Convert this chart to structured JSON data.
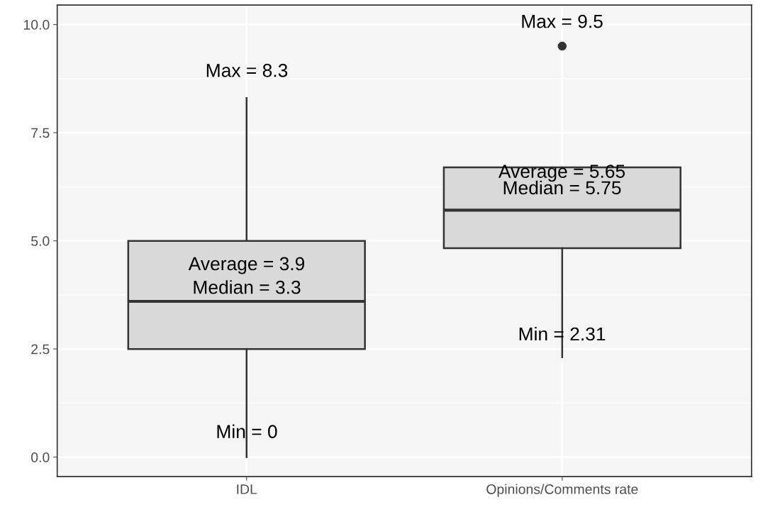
{
  "chart_data": {
    "type": "box",
    "categories": [
      "IDL",
      "Opinions/Comments rate"
    ],
    "boxes": [
      {
        "low": 0,
        "q1": 2.5,
        "median": 3.6,
        "q3": 5.0,
        "high": 8.3
      },
      {
        "low": 2.31,
        "q1": 4.83,
        "median": 5.71,
        "q3": 6.7,
        "high": 6.7,
        "outliers": [
          9.5
        ]
      }
    ],
    "color": "#d9d9d9",
    "ylim": [
      -0.45,
      10.45
    ],
    "yticks": [
      {
        "value": 0,
        "label": "0.0"
      },
      {
        "value": 2.5,
        "label": "2.5"
      },
      {
        "value": 5,
        "label": "5.0"
      },
      {
        "value": 7.5,
        "label": "7.5"
      },
      {
        "value": 10,
        "label": "10.0"
      }
    ],
    "grid": true,
    "annotations": [
      "Max = 8.3",
      "Average = 3.9",
      "Median = 3.3",
      "Min = 0",
      "Max = 9.5",
      "Average = 5.65",
      "Median = 5.75",
      "Min = 2.31"
    ]
  }
}
